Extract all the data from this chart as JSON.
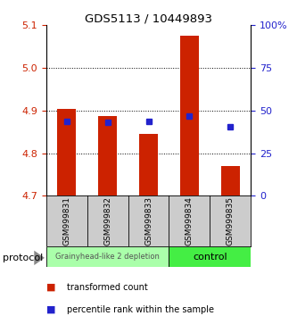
{
  "title": "GDS5113 / 10449893",
  "categories": [
    "GSM999831",
    "GSM999832",
    "GSM999833",
    "GSM999834",
    "GSM999835"
  ],
  "bar_bottoms": [
    4.7,
    4.7,
    4.7,
    4.7,
    4.7
  ],
  "bar_tops": [
    4.905,
    4.888,
    4.845,
    5.075,
    4.77
  ],
  "blue_values": [
    4.875,
    4.872,
    4.875,
    4.888,
    4.863
  ],
  "bar_color": "#cc2200",
  "blue_color": "#2222cc",
  "ylim": [
    4.7,
    5.1
  ],
  "yticks_left": [
    4.7,
    4.8,
    4.9,
    5.0,
    5.1
  ],
  "yticks_right": [
    0,
    25,
    50,
    75,
    100
  ],
  "grid_values": [
    4.8,
    4.9,
    5.0
  ],
  "group1_label": "Grainyhead-like 2 depletion",
  "group2_label": "control",
  "group1_color": "#aaffaa",
  "group2_color": "#44ee44",
  "protocol_label": "protocol",
  "legend1": "transformed count",
  "legend2": "percentile rank within the sample",
  "bg_color": "#ffffff",
  "tick_label_color_left": "#cc2200",
  "tick_label_color_right": "#2222cc",
  "bar_width": 0.45,
  "label_bg": "#cccccc"
}
